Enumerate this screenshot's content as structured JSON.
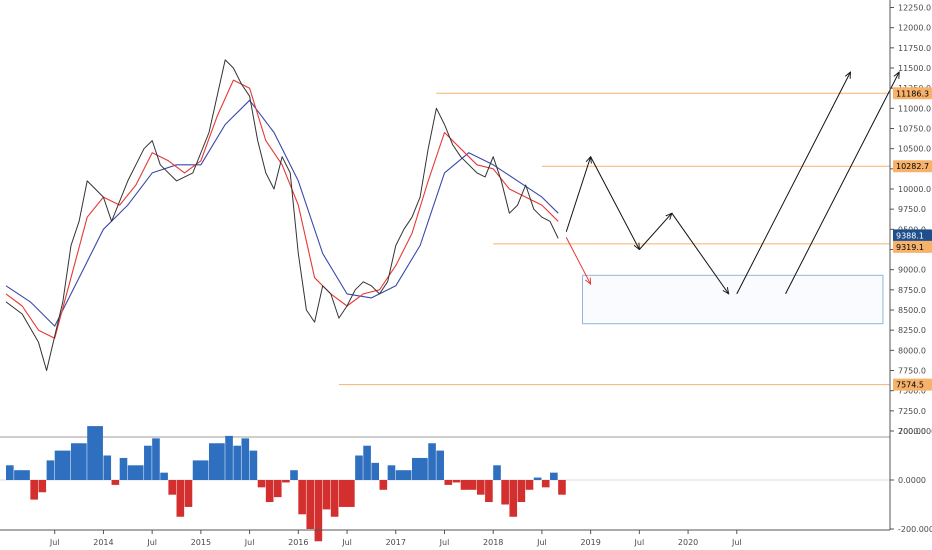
{
  "chart_data": [
    {
      "type": "line",
      "panel": "price",
      "y_axis_side": "right",
      "ylim": [
        6950,
        12300
      ],
      "y_ticks": [
        "12250.0",
        "12000.0",
        "11750.0",
        "11500.0",
        "11250.0",
        "11000.0",
        "10750.0",
        "10500.0",
        "10250.0",
        "10000.0",
        "9750.0",
        "9500.0",
        "9250.0",
        "9000.0",
        "8750.0",
        "8500.0",
        "8250.0",
        "8000.0",
        "7750.0",
        "7500.0",
        "7250.0",
        "7000.0"
      ],
      "x_ticks": [
        "Jul",
        "2014",
        "Jul",
        "2015",
        "Jul",
        "2016",
        "Jul",
        "2017",
        "Jul",
        "2018",
        "Jul",
        "2019",
        "Jul",
        "2020",
        "Jul"
      ],
      "x_tick_dates": [
        "2013-07",
        "2014-01",
        "2014-07",
        "2015-01",
        "2015-07",
        "2016-01",
        "2016-07",
        "2017-01",
        "2017-07",
        "2018-01",
        "2018-07",
        "2019-01",
        "2019-07",
        "2020-01",
        "2020-07"
      ],
      "series": [
        {
          "values": [
            {
              "x": "2013-01",
              "y": 8600
            },
            {
              "x": "2013-03",
              "y": 8450
            },
            {
              "x": "2013-05",
              "y": 8100
            },
            {
              "x": "2013-06",
              "y": 7750
            },
            {
              "x": "2013-08",
              "y": 8600
            },
            {
              "x": "2013-09",
              "y": 9300
            },
            {
              "x": "2013-10",
              "y": 9600
            },
            {
              "x": "2013-11",
              "y": 10100
            },
            {
              "x": "2014-01",
              "y": 9900
            },
            {
              "x": "2014-02",
              "y": 9600
            },
            {
              "x": "2014-04",
              "y": 10100
            },
            {
              "x": "2014-06",
              "y": 10500
            },
            {
              "x": "2014-07",
              "y": 10600
            },
            {
              "x": "2014-08",
              "y": 10300
            },
            {
              "x": "2014-10",
              "y": 10100
            },
            {
              "x": "2014-12",
              "y": 10200
            },
            {
              "x": "2015-02",
              "y": 10700
            },
            {
              "x": "2015-04",
              "y": 11600
            },
            {
              "x": "2015-05",
              "y": 11500
            },
            {
              "x": "2015-06",
              "y": 11300
            },
            {
              "x": "2015-07",
              "y": 11150
            },
            {
              "x": "2015-08",
              "y": 10600
            },
            {
              "x": "2015-09",
              "y": 10200
            },
            {
              "x": "2015-10",
              "y": 10000
            },
            {
              "x": "2015-11",
              "y": 10400
            },
            {
              "x": "2015-12",
              "y": 10200
            },
            {
              "x": "2016-01",
              "y": 9200
            },
            {
              "x": "2016-02",
              "y": 8500
            },
            {
              "x": "2016-03",
              "y": 8350
            },
            {
              "x": "2016-04",
              "y": 8800
            },
            {
              "x": "2016-05",
              "y": 8700
            },
            {
              "x": "2016-06",
              "y": 8400
            },
            {
              "x": "2016-07",
              "y": 8550
            },
            {
              "x": "2016-08",
              "y": 8750
            },
            {
              "x": "2016-09",
              "y": 8850
            },
            {
              "x": "2016-10",
              "y": 8800
            },
            {
              "x": "2016-11",
              "y": 8700
            },
            {
              "x": "2016-12",
              "y": 8850
            },
            {
              "x": "2017-01",
              "y": 9300
            },
            {
              "x": "2017-02",
              "y": 9500
            },
            {
              "x": "2017-03",
              "y": 9650
            },
            {
              "x": "2017-04",
              "y": 9900
            },
            {
              "x": "2017-05",
              "y": 10500
            },
            {
              "x": "2017-06",
              "y": 11000
            },
            {
              "x": "2017-07",
              "y": 10800
            },
            {
              "x": "2017-08",
              "y": 10550
            },
            {
              "x": "2017-09",
              "y": 10400
            },
            {
              "x": "2017-10",
              "y": 10300
            },
            {
              "x": "2017-11",
              "y": 10200
            },
            {
              "x": "2017-12",
              "y": 10150
            },
            {
              "x": "2018-01",
              "y": 10400
            },
            {
              "x": "2018-02",
              "y": 10100
            },
            {
              "x": "2018-03",
              "y": 9700
            },
            {
              "x": "2018-04",
              "y": 9800
            },
            {
              "x": "2018-05",
              "y": 10050
            },
            {
              "x": "2018-06",
              "y": 9750
            },
            {
              "x": "2018-07",
              "y": 9650
            },
            {
              "x": "2018-08",
              "y": 9600
            },
            {
              "x": "2018-09",
              "y": 9388.1
            }
          ]
        },
        {
          "values": [
            {
              "x": "2013-01",
              "y": 8700
            },
            {
              "x": "2013-03",
              "y": 8550
            },
            {
              "x": "2013-05",
              "y": 8250
            },
            {
              "x": "2013-07",
              "y": 8150
            },
            {
              "x": "2013-09",
              "y": 8900
            },
            {
              "x": "2013-11",
              "y": 9650
            },
            {
              "x": "2014-01",
              "y": 9900
            },
            {
              "x": "2014-03",
              "y": 9800
            },
            {
              "x": "2014-05",
              "y": 10050
            },
            {
              "x": "2014-07",
              "y": 10450
            },
            {
              "x": "2014-09",
              "y": 10350
            },
            {
              "x": "2014-11",
              "y": 10200
            },
            {
              "x": "2015-01",
              "y": 10350
            },
            {
              "x": "2015-03",
              "y": 10900
            },
            {
              "x": "2015-05",
              "y": 11350
            },
            {
              "x": "2015-07",
              "y": 11250
            },
            {
              "x": "2015-09",
              "y": 10600
            },
            {
              "x": "2015-11",
              "y": 10300
            },
            {
              "x": "2016-01",
              "y": 9800
            },
            {
              "x": "2016-03",
              "y": 8900
            },
            {
              "x": "2016-05",
              "y": 8700
            },
            {
              "x": "2016-07",
              "y": 8550
            },
            {
              "x": "2016-09",
              "y": 8700
            },
            {
              "x": "2016-11",
              "y": 8750
            },
            {
              "x": "2017-01",
              "y": 9050
            },
            {
              "x": "2017-03",
              "y": 9450
            },
            {
              "x": "2017-05",
              "y": 10100
            },
            {
              "x": "2017-07",
              "y": 10700
            },
            {
              "x": "2017-09",
              "y": 10500
            },
            {
              "x": "2017-11",
              "y": 10300
            },
            {
              "x": "2018-01",
              "y": 10250
            },
            {
              "x": "2018-03",
              "y": 10000
            },
            {
              "x": "2018-05",
              "y": 9900
            },
            {
              "x": "2018-07",
              "y": 9800
            },
            {
              "x": "2018-09",
              "y": 9600
            }
          ]
        },
        {
          "values": [
            {
              "x": "2013-01",
              "y": 8800
            },
            {
              "x": "2013-04",
              "y": 8600
            },
            {
              "x": "2013-07",
              "y": 8300
            },
            {
              "x": "2013-10",
              "y": 8900
            },
            {
              "x": "2014-01",
              "y": 9500
            },
            {
              "x": "2014-04",
              "y": 9800
            },
            {
              "x": "2014-07",
              "y": 10200
            },
            {
              "x": "2014-10",
              "y": 10300
            },
            {
              "x": "2015-01",
              "y": 10300
            },
            {
              "x": "2015-04",
              "y": 10800
            },
            {
              "x": "2015-07",
              "y": 11100
            },
            {
              "x": "2015-10",
              "y": 10700
            },
            {
              "x": "2016-01",
              "y": 10100
            },
            {
              "x": "2016-04",
              "y": 9200
            },
            {
              "x": "2016-07",
              "y": 8700
            },
            {
              "x": "2016-10",
              "y": 8650
            },
            {
              "x": "2017-01",
              "y": 8800
            },
            {
              "x": "2017-04",
              "y": 9300
            },
            {
              "x": "2017-07",
              "y": 10200
            },
            {
              "x": "2017-10",
              "y": 10450
            },
            {
              "x": "2018-01",
              "y": 10300
            },
            {
              "x": "2018-04",
              "y": 10100
            },
            {
              "x": "2018-07",
              "y": 9900
            },
            {
              "x": "2018-09",
              "y": 9700
            }
          ]
        }
      ],
      "price_tags": [
        {
          "label": "11186.3",
          "value": 11186.3,
          "bg": "#f6b26b",
          "fg": "#000000"
        },
        {
          "label": "10282.7",
          "value": 10282.7,
          "bg": "#f6b26b",
          "fg": "#000000"
        },
        {
          "label": "9388.1",
          "value": 9388.1,
          "bg": "#1e4f8c",
          "fg": "#ffffff"
        },
        {
          "label": "9319.1",
          "value": 9319.1,
          "bg": "#f6b26b",
          "fg": "#000000"
        },
        {
          "label": "7574.5",
          "value": 7574.5,
          "bg": "#f6b26b",
          "fg": "#000000"
        }
      ],
      "horizontal_levels": [
        {
          "value": 11186.3,
          "from": "2017-06"
        },
        {
          "value": 10282.7,
          "from": "2018-07"
        },
        {
          "value": 9319.1,
          "from": "2018-01"
        },
        {
          "value": 7574.5,
          "from": "2016-06"
        }
      ],
      "projection_path": [
        {
          "x": "2018-10",
          "y": 9470
        },
        {
          "x": "2019-01",
          "y": 10400
        },
        {
          "x": "2019-07",
          "y": 9250
        },
        {
          "x": "2019-11",
          "y": 9700
        },
        {
          "x": "2020-06",
          "y": 8700
        }
      ],
      "projection_up_arrows": [
        [
          {
            "x": "2020-07",
            "y": 8700
          },
          {
            "x": "2021-09",
            "y": 11450
          }
        ],
        [
          {
            "x": "2021-01",
            "y": 8700
          },
          {
            "x": "2022-03",
            "y": 11450
          }
        ]
      ],
      "red_arrow": [
        {
          "x": "2018-10",
          "y": 9400
        },
        {
          "x": "2019-01",
          "y": 8820
        }
      ],
      "target_box": {
        "x_from": "2018-12",
        "x_to": "2022-01",
        "y_from": 8330,
        "y_to": 8930
      },
      "colors": {
        "price": "#333333",
        "ma_fast": "#e53935",
        "ma_slow": "#3949ab",
        "levels": "#f6b26b",
        "box": "#90b8d8",
        "projection": "#111111",
        "red_arrow": "#e53935"
      },
      "grid": false
    },
    {
      "type": "area",
      "panel": "oscillator",
      "y_axis_side": "right",
      "ylim": [
        -300,
        220
      ],
      "y_ticks": [
        "200.0000",
        "0.0000",
        "-200.0000"
      ],
      "x": [
        "2013-01",
        "2013-02",
        "2013-04",
        "2013-05",
        "2013-06",
        "2013-07",
        "2013-09",
        "2013-11",
        "2014-01",
        "2014-02",
        "2014-03",
        "2014-04",
        "2014-06",
        "2014-07",
        "2014-08",
        "2014-09",
        "2014-10",
        "2014-11",
        "2014-12",
        "2015-02",
        "2015-04",
        "2015-05",
        "2015-06",
        "2015-07",
        "2015-08",
        "2015-09",
        "2015-10",
        "2015-11",
        "2015-12",
        "2016-01",
        "2016-02",
        "2016-03",
        "2016-04",
        "2016-05",
        "2016-06",
        "2016-08",
        "2016-09",
        "2016-10",
        "2016-11",
        "2016-12",
        "2017-01",
        "2017-03",
        "2017-05",
        "2017-06",
        "2017-07",
        "2017-08",
        "2017-09",
        "2017-11",
        "2017-12",
        "2018-01",
        "2018-02",
        "2018-03",
        "2018-04",
        "2018-05",
        "2018-06",
        "2018-07",
        "2018-08",
        "2018-09"
      ],
      "values": [
        60,
        40,
        -80,
        -50,
        80,
        120,
        150,
        220,
        100,
        -20,
        90,
        60,
        140,
        170,
        30,
        -60,
        -150,
        -110,
        80,
        150,
        180,
        140,
        170,
        120,
        -30,
        -90,
        -70,
        -10,
        40,
        -140,
        -200,
        -250,
        -120,
        -150,
        -110,
        100,
        140,
        70,
        -40,
        60,
        40,
        90,
        150,
        120,
        -20,
        -10,
        -40,
        -60,
        -90,
        60,
        -100,
        -150,
        -90,
        -40,
        10,
        -30,
        30,
        -60
      ],
      "colors": {
        "positive": "#2f6fbf",
        "negative": "#d32f2f"
      }
    }
  ]
}
